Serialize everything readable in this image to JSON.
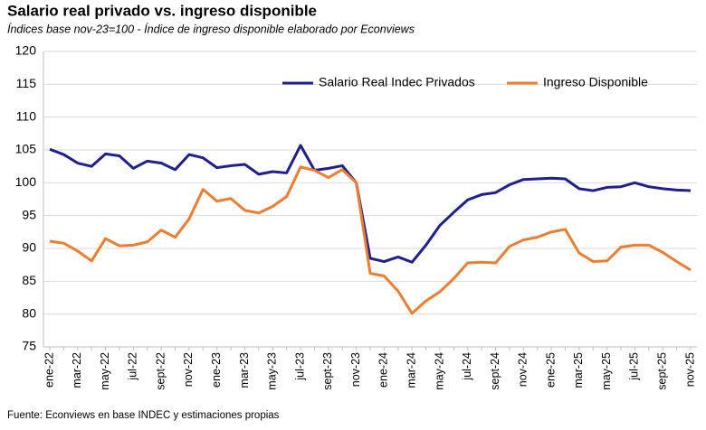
{
  "chart_data": {
    "type": "line",
    "title": "Salario real privado vs. ingreso disponible",
    "subtitle": "Índices base nov-23=100 - Índice de ingreso disponible elaborado por Econviews",
    "source": "Fuente: Econviews en base INDEC y estimaciones propias",
    "categories": [
      "ene-22",
      null,
      "mar-22",
      null,
      "may-22",
      null,
      "jul-22",
      null,
      "sept-22",
      null,
      "nov-22",
      null,
      "ene-23",
      null,
      "mar-23",
      null,
      "may-23",
      null,
      "jul-23",
      null,
      "sept-23",
      null,
      "nov-23",
      null,
      "ene-24",
      null,
      "mar-24",
      null,
      "may-24",
      null,
      "jul-24",
      null,
      "sept-24",
      null,
      "nov-24",
      null,
      "ene-25",
      null,
      "mar-25",
      null,
      "may-25",
      null,
      "jul-25",
      null,
      "sept-25",
      null,
      "nov-25"
    ],
    "series": [
      {
        "name": "Salario Real Indec Privados",
        "color": "#1f1f8f",
        "values": [
          105.1,
          104.3,
          103.0,
          102.5,
          104.4,
          104.1,
          102.2,
          103.3,
          103.0,
          102.0,
          104.3,
          103.8,
          102.3,
          102.6,
          102.8,
          101.3,
          101.7,
          101.5,
          105.7,
          101.9,
          102.2,
          102.6,
          100.0,
          88.5,
          88.0,
          88.7,
          87.9,
          90.5,
          93.5,
          95.5,
          97.4,
          98.2,
          98.5,
          99.7,
          100.5,
          100.6,
          100.7,
          100.6,
          99.1,
          98.8,
          99.3,
          99.4,
          100.0,
          99.4,
          99.1,
          98.9,
          98.8
        ]
      },
      {
        "name": "Ingreso Disponible",
        "color": "#ed7d31",
        "values": [
          91.1,
          90.8,
          89.6,
          88.1,
          91.5,
          90.4,
          90.5,
          91.0,
          92.8,
          91.7,
          94.5,
          99.0,
          97.2,
          97.6,
          95.8,
          95.4,
          96.4,
          97.9,
          102.4,
          101.9,
          100.8,
          102.0,
          100.0,
          86.2,
          85.8,
          83.5,
          80.1,
          82.0,
          83.4,
          85.4,
          87.8,
          87.9,
          87.8,
          90.3,
          91.3,
          91.7,
          92.5,
          92.9,
          89.3,
          88.0,
          88.1,
          90.2,
          90.5,
          90.5,
          89.4,
          88.0,
          86.7
        ]
      }
    ],
    "ylim": [
      75,
      120
    ],
    "yticks": [
      75,
      80,
      85,
      90,
      95,
      100,
      105,
      110,
      115,
      120
    ],
    "grid": true
  }
}
